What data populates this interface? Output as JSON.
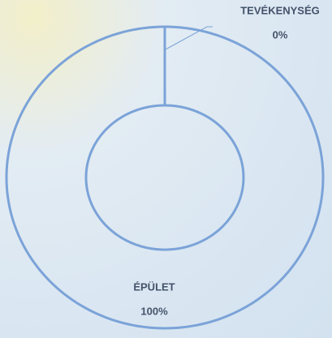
{
  "chart_data": {
    "type": "donut",
    "categories": [
      "TEVÉKENYSÉG",
      "ÉPÜLET"
    ],
    "values": [
      0,
      100
    ],
    "value_labels": [
      "0%",
      "100%"
    ],
    "color": "#7ba3d8"
  }
}
